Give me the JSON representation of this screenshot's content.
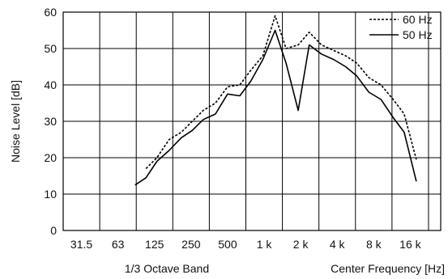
{
  "chart_data": {
    "type": "line",
    "title": "",
    "ylabel": "Noise Level [dB]",
    "xlabel_left": "1/3 Octave Band",
    "xlabel_right": "Center Frequency [Hz]",
    "x_tick_labels": [
      "31.5",
      "63",
      "125",
      "250",
      "500",
      "1 k",
      "2 k",
      "4 k",
      "8 k",
      "16 k"
    ],
    "x_range_bands": [
      0,
      31
    ],
    "ylim": [
      0,
      60
    ],
    "y_ticks": [
      0,
      10,
      20,
      30,
      40,
      50,
      60
    ],
    "grid": true,
    "legend_position": "top-right",
    "series": [
      {
        "name": "60 Hz",
        "style": "dotted",
        "color": "#000000",
        "x": [
          6.8,
          7.7,
          8.7,
          9.7,
          10.6,
          11.5,
          12.5,
          13.5,
          14.5,
          15.4,
          16.4,
          17.4,
          18.3,
          19.3,
          20.2,
          21.2,
          22.2,
          23.2,
          24.1,
          25.1,
          26.1,
          27.1,
          28.0,
          29.0
        ],
        "values": [
          17,
          20,
          25,
          27,
          30,
          33,
          35,
          39.5,
          40,
          44,
          48,
          59,
          50,
          51,
          54.5,
          51,
          49.5,
          48,
          46,
          42,
          40,
          36,
          32,
          19.5
        ]
      },
      {
        "name": "50 Hz",
        "style": "solid",
        "color": "#000000",
        "x": [
          5.9,
          6.8,
          7.7,
          8.7,
          9.7,
          10.6,
          11.5,
          12.5,
          13.5,
          14.5,
          15.4,
          16.4,
          17.4,
          18.3,
          19.3,
          20.2,
          21.2,
          22.2,
          23.2,
          24.1,
          25.1,
          26.1,
          27.1,
          28.0,
          29.0
        ],
        "values": [
          12.5,
          14.5,
          19,
          22,
          25.5,
          27.5,
          30.5,
          32,
          37.5,
          37,
          41,
          47,
          55,
          46,
          33,
          51,
          48.5,
          47,
          45,
          42.5,
          38,
          36,
          31,
          27,
          13.5
        ]
      }
    ]
  }
}
